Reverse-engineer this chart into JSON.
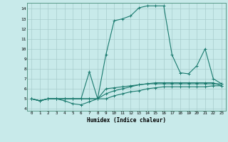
{
  "xlabel": "Humidex (Indice chaleur)",
  "ylabel": "",
  "background_color": "#c8eaea",
  "grid_color": "#a8cccc",
  "line_color": "#1a7a6e",
  "xlim": [
    -0.5,
    23.5
  ],
  "ylim": [
    3.8,
    14.6
  ],
  "xticks": [
    0,
    1,
    2,
    3,
    4,
    5,
    6,
    7,
    8,
    9,
    10,
    11,
    12,
    13,
    14,
    15,
    16,
    17,
    18,
    19,
    20,
    21,
    22,
    23
  ],
  "yticks": [
    4,
    5,
    6,
    7,
    8,
    9,
    10,
    11,
    12,
    13,
    14
  ],
  "line1_x": [
    0,
    1,
    2,
    3,
    4,
    5,
    6,
    7,
    8,
    9,
    10,
    11,
    12,
    13,
    14,
    15,
    16,
    17,
    18,
    19,
    20,
    21,
    22,
    23
  ],
  "line1_y": [
    5.0,
    4.8,
    5.0,
    5.0,
    4.8,
    4.5,
    4.4,
    4.7,
    5.0,
    9.4,
    12.8,
    13.0,
    13.3,
    14.1,
    14.3,
    14.3,
    14.3,
    9.4,
    7.6,
    7.5,
    8.3,
    10.0,
    7.0,
    6.5
  ],
  "line2_x": [
    0,
    1,
    2,
    3,
    4,
    5,
    6,
    7,
    8,
    9,
    10,
    11,
    12,
    13,
    14,
    15,
    16,
    17,
    18,
    19,
    20,
    21,
    22,
    23
  ],
  "line2_y": [
    5.0,
    4.8,
    5.0,
    5.0,
    5.0,
    5.0,
    5.0,
    7.7,
    5.0,
    6.0,
    6.1,
    6.2,
    6.3,
    6.4,
    6.5,
    6.5,
    6.5,
    6.5,
    6.5,
    6.5,
    6.5,
    6.5,
    6.5,
    6.5
  ],
  "line3_x": [
    0,
    1,
    2,
    3,
    4,
    5,
    6,
    7,
    8,
    9,
    10,
    11,
    12,
    13,
    14,
    15,
    16,
    17,
    18,
    19,
    20,
    21,
    22,
    23
  ],
  "line3_y": [
    5.0,
    4.8,
    5.0,
    5.0,
    5.0,
    5.0,
    5.0,
    5.0,
    5.0,
    5.5,
    5.8,
    6.0,
    6.2,
    6.4,
    6.5,
    6.6,
    6.6,
    6.6,
    6.6,
    6.6,
    6.6,
    6.6,
    6.6,
    6.3
  ],
  "line4_x": [
    0,
    1,
    2,
    3,
    4,
    5,
    6,
    7,
    8,
    9,
    10,
    11,
    12,
    13,
    14,
    15,
    16,
    17,
    18,
    19,
    20,
    21,
    22,
    23
  ],
  "line4_y": [
    5.0,
    4.8,
    5.0,
    5.0,
    5.0,
    5.0,
    5.0,
    5.0,
    5.0,
    5.0,
    5.3,
    5.5,
    5.7,
    5.8,
    6.0,
    6.1,
    6.2,
    6.2,
    6.2,
    6.2,
    6.2,
    6.2,
    6.3,
    6.3
  ],
  "figsize": [
    3.2,
    2.0
  ],
  "dpi": 100
}
